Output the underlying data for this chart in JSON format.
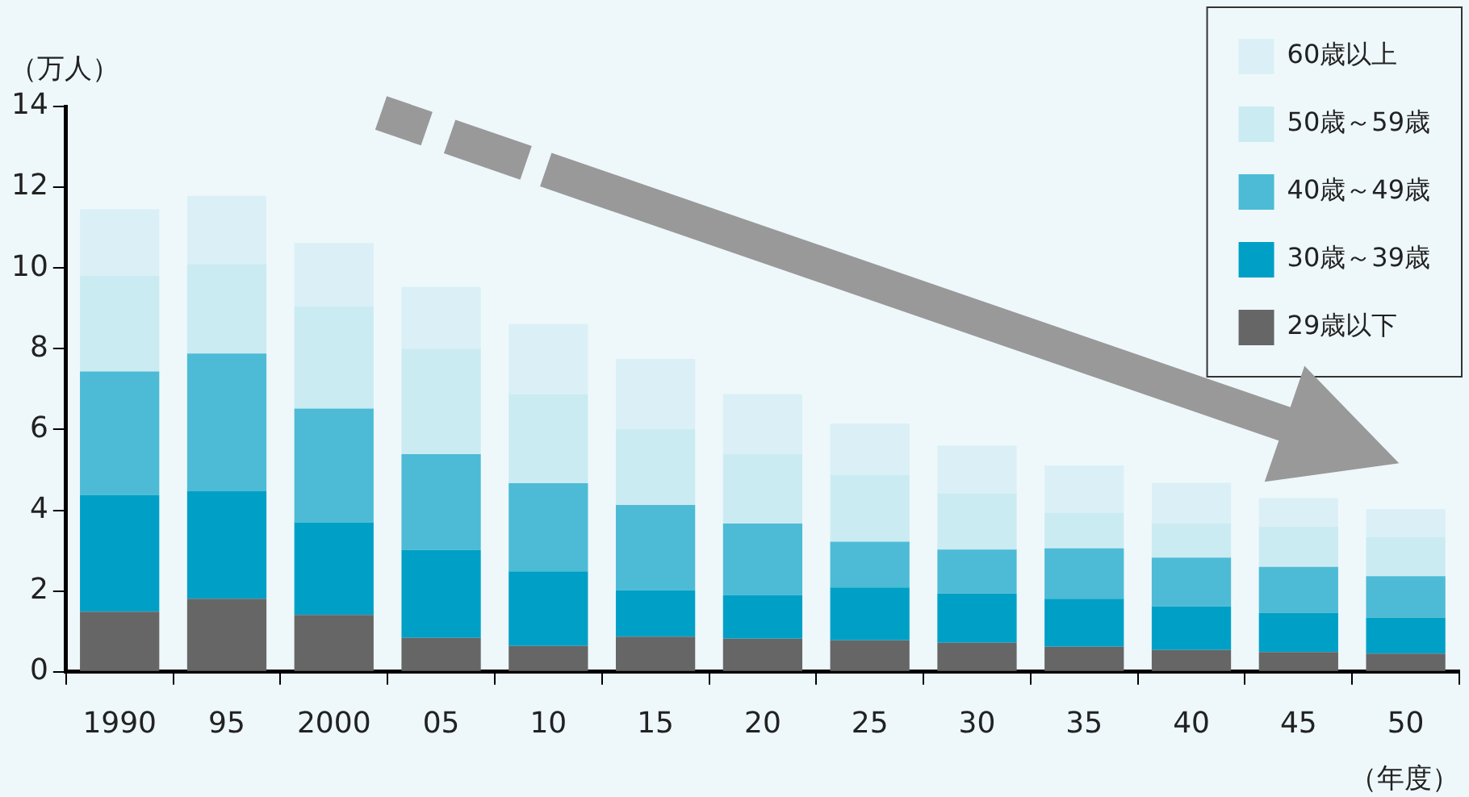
{
  "chart_data": {
    "type": "bar",
    "stacked": true,
    "ylabel": "（万人）",
    "xlabel": "（年度）",
    "categories": [
      "1990",
      "95",
      "2000",
      "05",
      "10",
      "15",
      "20",
      "25",
      "30",
      "35",
      "40",
      "45",
      "50"
    ],
    "ylim": [
      0,
      14
    ],
    "yticks": [
      0,
      2,
      4,
      6,
      8,
      10,
      12,
      14
    ],
    "grid": false,
    "legend": "top right",
    "series": [
      {
        "name": "29歳以下",
        "color": "#666666",
        "values": [
          1.49,
          1.81,
          1.41,
          0.84,
          0.64,
          0.87,
          0.82,
          0.78,
          0.72,
          0.62,
          0.54,
          0.49,
          0.45
        ]
      },
      {
        "name": "30歳～39歳",
        "color": "#00a0c6",
        "values": [
          2.89,
          2.66,
          2.29,
          2.18,
          1.85,
          1.15,
          1.08,
          1.31,
          1.22,
          1.19,
          1.08,
          0.97,
          0.89
        ]
      },
      {
        "name": "40歳～49歳",
        "color": "#4dbbd5",
        "values": [
          3.06,
          3.41,
          2.82,
          2.37,
          2.18,
          2.11,
          1.77,
          1.13,
          1.09,
          1.25,
          1.21,
          1.14,
          1.03
        ]
      },
      {
        "name": "50歳～59歳",
        "color": "#cbebf2",
        "values": [
          2.37,
          2.22,
          2.53,
          2.61,
          2.21,
          1.88,
          1.72,
          1.66,
          1.39,
          0.88,
          0.84,
          0.99,
          0.97
        ]
      },
      {
        "name": "60歳以上",
        "color": "#daf0f6",
        "values": [
          1.65,
          1.69,
          1.57,
          1.53,
          1.73,
          1.74,
          1.49,
          1.27,
          1.18,
          1.17,
          1.01,
          0.71,
          0.69
        ]
      }
    ]
  }
}
